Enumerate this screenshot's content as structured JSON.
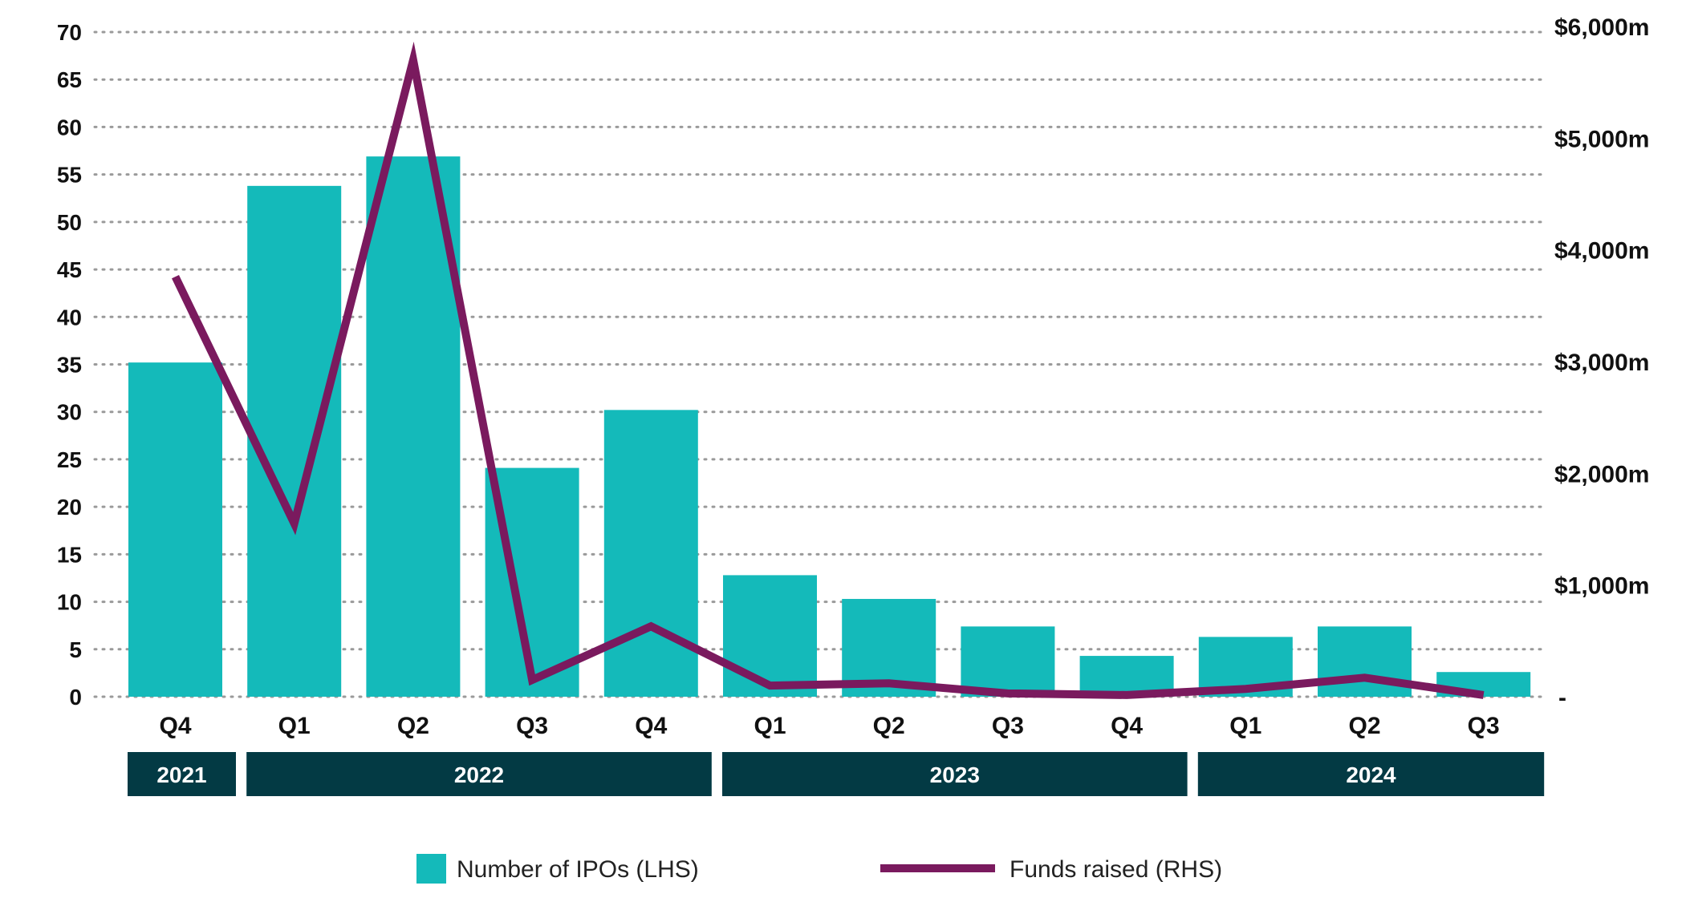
{
  "chart_data": {
    "type": "bar",
    "categories": [
      "Q4",
      "Q1",
      "Q2",
      "Q3",
      "Q4",
      "Q1",
      "Q2",
      "Q3",
      "Q4",
      "Q1",
      "Q2",
      "Q3"
    ],
    "year_groups": [
      {
        "label": "2021",
        "start": 0,
        "end": 0
      },
      {
        "label": "2022",
        "start": 1,
        "end": 4
      },
      {
        "label": "2023",
        "start": 5,
        "end": 8
      },
      {
        "label": "2024",
        "start": 9,
        "end": 11
      }
    ],
    "series": [
      {
        "name": "Number of IPOs (LHS)",
        "type": "bar",
        "axis": "left",
        "color": "#14BABA",
        "values": [
          35.2,
          53.8,
          56.9,
          24.1,
          30.2,
          12.8,
          10.3,
          7.4,
          4.3,
          6.3,
          7.4,
          2.6
        ]
      },
      {
        "name": "Funds raised (RHS)",
        "type": "line",
        "axis": "right",
        "color": "#7A1A5E",
        "values": [
          3760,
          1550,
          5700,
          150,
          630,
          100,
          120,
          30,
          15,
          70,
          170,
          15
        ]
      }
    ],
    "y_left": {
      "min": 0,
      "max": 70,
      "ticks": [
        0,
        5,
        10,
        15,
        20,
        25,
        30,
        35,
        40,
        45,
        50,
        55,
        60,
        65,
        70
      ]
    },
    "y_right": {
      "min": 0,
      "max": 6000,
      "ticks": [
        {
          "value": 0,
          "label": "-"
        },
        {
          "value": 1000,
          "label": "$1,000m"
        },
        {
          "value": 2000,
          "label": "$2,000m"
        },
        {
          "value": 3000,
          "label": "$3,000m"
        },
        {
          "value": 4000,
          "label": "$4,000m"
        },
        {
          "value": 5000,
          "label": "$5,000m"
        },
        {
          "value": 6000,
          "label": "$6,000m"
        }
      ]
    },
    "grid": true,
    "legend_position": "bottom",
    "title": "",
    "xlabel": "",
    "ylabel": ""
  },
  "colors": {
    "bar": "#14BABA",
    "line": "#7A1A5E",
    "year_band": "#033A44",
    "grid": "#9A9A9A"
  }
}
